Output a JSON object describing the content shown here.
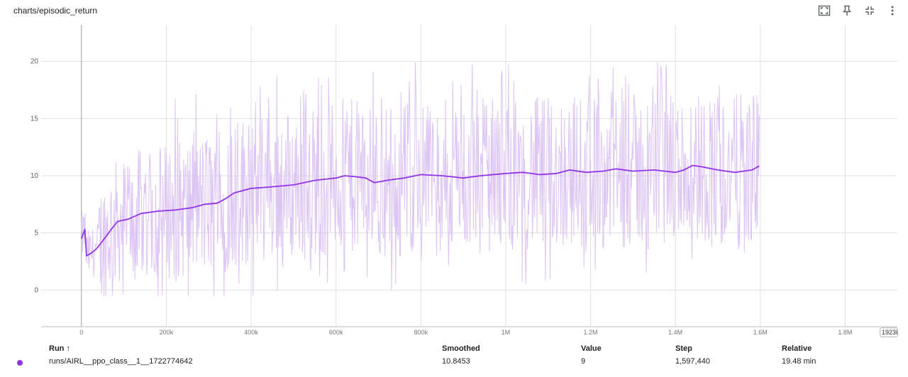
{
  "card": {
    "title": "charts/episodic_return",
    "icons": [
      "fullscreen-icon",
      "pin-icon",
      "fit-domain-icon",
      "more-vert-icon"
    ],
    "x_edge_label": "1923k"
  },
  "chart_data": {
    "type": "line",
    "title": "charts/episodic_return",
    "xlabel": "",
    "ylabel": "",
    "xlim": [
      -95000,
      1923000
    ],
    "ylim": [
      -3.2,
      23.2
    ],
    "x_ticks": [
      0,
      200000,
      400000,
      600000,
      800000,
      1000000,
      1200000,
      1400000,
      1600000,
      1800000
    ],
    "x_tick_labels": [
      "0",
      "200k",
      "400k",
      "600k",
      "800k",
      "1M",
      "1.2M",
      "1.4M",
      "1.6M",
      "1.8M"
    ],
    "y_ticks": [
      0,
      5,
      10,
      15,
      20
    ],
    "y_tick_labels": [
      "0",
      "5",
      "10",
      "15",
      "20"
    ],
    "grid": true,
    "series": [
      {
        "name": "runs/AIRL__ppo_class__1__1722774642",
        "color": "#9334e6",
        "raw_color": "#dcc4f4",
        "raw_max": 19.9,
        "raw_min": -0.5,
        "smoothed": [
          [
            0,
            4.5
          ],
          [
            8000,
            5.3
          ],
          [
            12000,
            3.0
          ],
          [
            22000,
            3.2
          ],
          [
            35000,
            3.6
          ],
          [
            50000,
            4.3
          ],
          [
            70000,
            5.3
          ],
          [
            85000,
            6.0
          ],
          [
            110000,
            6.2
          ],
          [
            140000,
            6.7
          ],
          [
            180000,
            6.9
          ],
          [
            220000,
            7.0
          ],
          [
            260000,
            7.2
          ],
          [
            290000,
            7.5
          ],
          [
            320000,
            7.6
          ],
          [
            340000,
            8.0
          ],
          [
            360000,
            8.5
          ],
          [
            400000,
            8.9
          ],
          [
            440000,
            9.0
          ],
          [
            500000,
            9.2
          ],
          [
            550000,
            9.6
          ],
          [
            600000,
            9.8
          ],
          [
            620000,
            10.0
          ],
          [
            650000,
            9.9
          ],
          [
            670000,
            9.8
          ],
          [
            690000,
            9.4
          ],
          [
            720000,
            9.6
          ],
          [
            760000,
            9.8
          ],
          [
            800000,
            10.1
          ],
          [
            850000,
            10.0
          ],
          [
            900000,
            9.8
          ],
          [
            940000,
            10.0
          ],
          [
            1000000,
            10.2
          ],
          [
            1040000,
            10.3
          ],
          [
            1080000,
            10.1
          ],
          [
            1120000,
            10.2
          ],
          [
            1150000,
            10.5
          ],
          [
            1190000,
            10.3
          ],
          [
            1230000,
            10.4
          ],
          [
            1260000,
            10.6
          ],
          [
            1300000,
            10.4
          ],
          [
            1350000,
            10.5
          ],
          [
            1400000,
            10.3
          ],
          [
            1420000,
            10.5
          ],
          [
            1440000,
            10.9
          ],
          [
            1460000,
            10.8
          ],
          [
            1500000,
            10.5
          ],
          [
            1540000,
            10.3
          ],
          [
            1580000,
            10.5
          ],
          [
            1597440,
            10.85
          ]
        ]
      }
    ]
  },
  "run_table": {
    "headers": {
      "run": "Run ↑",
      "smoothed": "Smoothed",
      "value": "Value",
      "step": "Step",
      "relative": "Relative"
    },
    "rows": [
      {
        "run": "runs/AIRL__ppo_class__1__1722774642",
        "smoothed": "10.8453",
        "value": "9",
        "step": "1,597,440",
        "relative": "19.48 min",
        "color": "#9334e6"
      }
    ]
  }
}
